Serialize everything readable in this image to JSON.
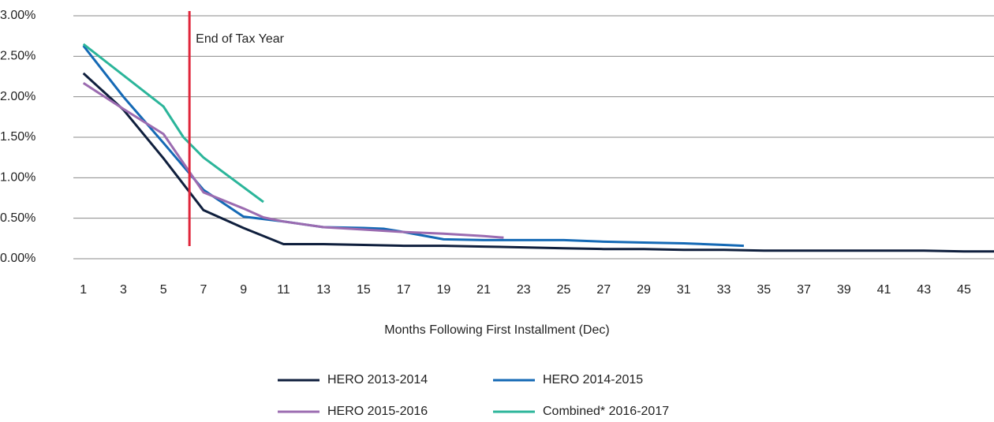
{
  "chart_data": {
    "type": "line",
    "xlabel": "Months Following First Installment (Dec)",
    "xlim": [
      0.5,
      46.5
    ],
    "xticks": [
      1,
      3,
      5,
      7,
      9,
      11,
      13,
      15,
      17,
      19,
      21,
      23,
      25,
      27,
      29,
      31,
      33,
      35,
      37,
      39,
      41,
      43,
      45
    ],
    "ylim": [
      0,
      3
    ],
    "yticks": [
      {
        "value": 0,
        "label": "0.00%"
      },
      {
        "value": 0.5,
        "label": "0.50%"
      },
      {
        "value": 1,
        "label": "1.00%"
      },
      {
        "value": 1.5,
        "label": "1.50%"
      },
      {
        "value": 2,
        "label": "2.00%"
      },
      {
        "value": 2.5,
        "label": "2.50%"
      },
      {
        "value": 3,
        "label": "3.00%"
      }
    ],
    "grid": true,
    "annotation": {
      "text": "End of Tax Year",
      "x": 6.3,
      "color": "#e0263b"
    },
    "series": [
      {
        "name": "HERO 2013-2014",
        "color": "#0f1f3d",
        "x": [
          1,
          3,
          5,
          7,
          9,
          11,
          13,
          15,
          17,
          19,
          21,
          23,
          25,
          27,
          29,
          31,
          33,
          35,
          37,
          39,
          41,
          43,
          45,
          46.5
        ],
        "values": [
          2.29,
          1.84,
          1.24,
          0.6,
          0.38,
          0.18,
          0.18,
          0.17,
          0.16,
          0.16,
          0.15,
          0.14,
          0.13,
          0.12,
          0.12,
          0.11,
          0.11,
          0.1,
          0.1,
          0.1,
          0.1,
          0.1,
          0.09,
          0.09
        ]
      },
      {
        "name": "HERO 2014-2015",
        "color": "#1469b5",
        "x": [
          1,
          3,
          5,
          7,
          9,
          11,
          13,
          15,
          16,
          17,
          19,
          21,
          23,
          25,
          27,
          29,
          31,
          33,
          34
        ],
        "values": [
          2.63,
          2.0,
          1.43,
          0.85,
          0.52,
          0.46,
          0.39,
          0.38,
          0.37,
          0.33,
          0.24,
          0.23,
          0.23,
          0.23,
          0.21,
          0.2,
          0.19,
          0.17,
          0.16
        ]
      },
      {
        "name": "HERO 2015-2016",
        "color": "#9b6bb0",
        "x": [
          1,
          3,
          5,
          7,
          9,
          10,
          11,
          13,
          15,
          17,
          19,
          21,
          22
        ],
        "values": [
          2.17,
          1.85,
          1.54,
          0.82,
          0.62,
          0.51,
          0.46,
          0.39,
          0.36,
          0.33,
          0.31,
          0.28,
          0.26
        ]
      },
      {
        "name": "Combined* 2016-2017",
        "color": "#2bb59a",
        "x": [
          1,
          5,
          6,
          7,
          10
        ],
        "values": [
          2.65,
          1.88,
          1.5,
          1.25,
          0.7
        ]
      }
    ]
  }
}
